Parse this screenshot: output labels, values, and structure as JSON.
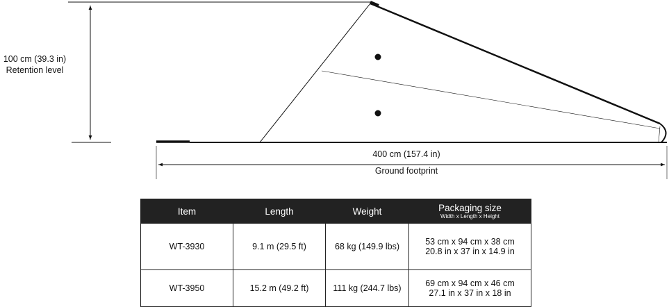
{
  "diagram": {
    "retention": {
      "measure": "100 cm (39.3 in)",
      "label": "Retention level"
    },
    "footprint": {
      "measure": "400 cm (157.4 in)",
      "label": "Ground footprint"
    }
  },
  "table": {
    "header": [
      "Item",
      "Length",
      "Weight",
      "Packaging size"
    ],
    "header_note": "Width x Length x Height",
    "rows": [
      [
        "WT-3930",
        "9.1 m (29.5 ft)",
        "68 kg (149.9 lbs)",
        [
          "53 cm x 94 cm x 38 cm",
          "20.8 in x 37 in x 14.9 in"
        ]
      ],
      [
        "WT-3950",
        "15.2 m (49.2 ft)",
        "111 kg (244.7 lbs)",
        [
          "69 cm x 94 cm x 46 cm",
          "27.1 in x 37 in x 18 in"
        ]
      ]
    ]
  }
}
